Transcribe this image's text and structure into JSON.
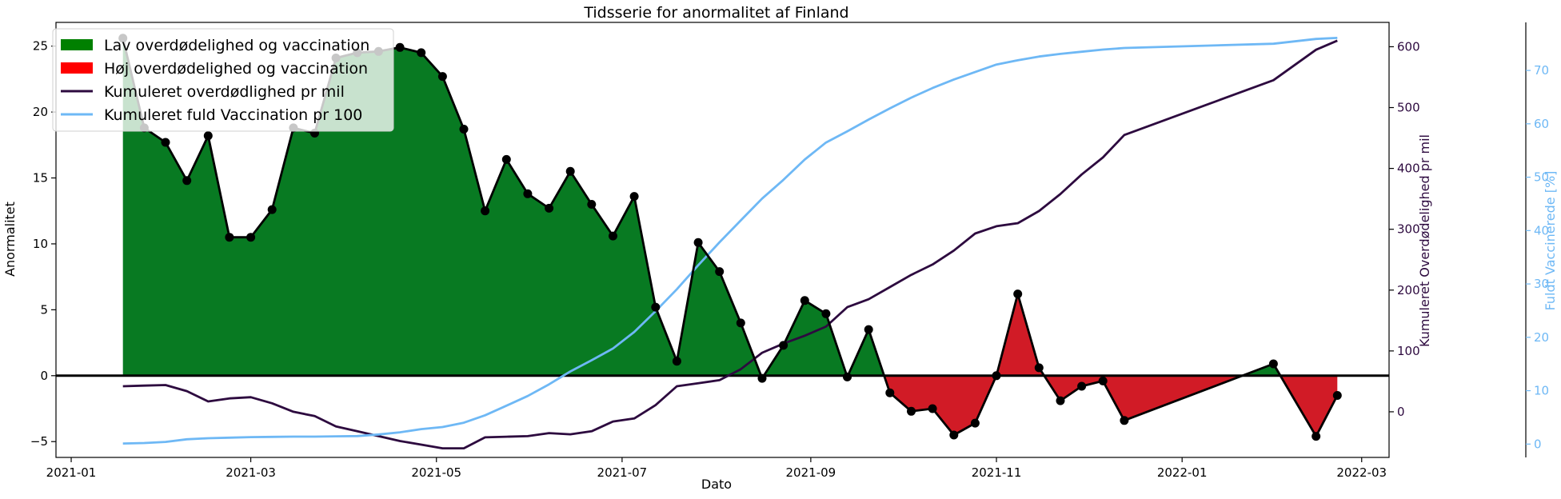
{
  "chart_data": {
    "type": "area",
    "title": "Tidsserie for anormalitet af Finland",
    "xlabel": "Dato",
    "ylabel": "Anormalitet",
    "ylabel_right": "Kumuleret Overdødelighed pr mil",
    "ylabel_right2": "Fuldt Vaccinerede [%]",
    "xlim": [
      "2020-12-27",
      "2022-03-10"
    ],
    "ylim": [
      -6.2,
      26.8
    ],
    "ylim_right": [
      -75,
      640
    ],
    "ylim_right2": [
      -2.5,
      79
    ],
    "x_ticks": [
      "2021-01",
      "2021-03",
      "2021-05",
      "2021-07",
      "2021-09",
      "2021-11",
      "2022-01",
      "2022-03"
    ],
    "y_ticks": [
      -5,
      0,
      5,
      10,
      15,
      20,
      25
    ],
    "y_ticks_right": [
      0,
      100,
      200,
      300,
      400,
      500,
      600
    ],
    "y_ticks_right2": [
      0,
      10,
      20,
      30,
      40,
      50,
      60,
      70
    ],
    "legend": {
      "placement": "top-left",
      "entries": [
        {
          "label": "Lav overdødelighed og vaccination",
          "color": "#008000",
          "kind": "patch"
        },
        {
          "label": "Høj overdødelighed og vaccination",
          "color": "#ff0000",
          "kind": "patch"
        },
        {
          "label": "Kumuleret overdødlighed pr mil",
          "color": "#2d0a3f",
          "kind": "line"
        },
        {
          "label": "Kumuleret fuld Vaccination pr 100",
          "color": "#6eb8f5",
          "kind": "line"
        }
      ]
    },
    "colors": {
      "positive_fill": "#087a22",
      "negative_fill": "#d11b26",
      "anomaly_line": "#000000",
      "excess_mortality_line": "#2d0a3f",
      "vaccination_line": "#6eb8f5"
    },
    "grid": false,
    "series": [
      {
        "name": "Anormalitet",
        "axis": "left",
        "points": [
          [
            "2021-01-18",
            25.6
          ],
          [
            "2021-01-25",
            18.8
          ],
          [
            "2021-02-01",
            17.7
          ],
          [
            "2021-02-08",
            14.8
          ],
          [
            "2021-02-15",
            18.2
          ],
          [
            "2021-02-22",
            10.5
          ],
          [
            "2021-03-01",
            10.5
          ],
          [
            "2021-03-08",
            12.6
          ],
          [
            "2021-03-15",
            18.8
          ],
          [
            "2021-03-22",
            18.4
          ],
          [
            "2021-03-29",
            24.1
          ],
          [
            "2021-04-05",
            24.5
          ],
          [
            "2021-04-12",
            24.6
          ],
          [
            "2021-04-19",
            24.9
          ],
          [
            "2021-04-26",
            24.5
          ],
          [
            "2021-05-03",
            22.7
          ],
          [
            "2021-05-10",
            18.7
          ],
          [
            "2021-05-17",
            12.5
          ],
          [
            "2021-05-24",
            16.4
          ],
          [
            "2021-05-31",
            13.8
          ],
          [
            "2021-06-07",
            12.7
          ],
          [
            "2021-06-14",
            15.5
          ],
          [
            "2021-06-21",
            13.0
          ],
          [
            "2021-06-28",
            10.6
          ],
          [
            "2021-07-05",
            13.6
          ],
          [
            "2021-07-12",
            5.2
          ],
          [
            "2021-07-19",
            1.1
          ],
          [
            "2021-07-26",
            10.1
          ],
          [
            "2021-08-02",
            7.9
          ],
          [
            "2021-08-09",
            4.0
          ],
          [
            "2021-08-16",
            -0.2
          ],
          [
            "2021-08-23",
            2.3
          ],
          [
            "2021-08-30",
            5.7
          ],
          [
            "2021-09-06",
            4.7
          ],
          [
            "2021-09-13",
            -0.1
          ],
          [
            "2021-09-20",
            3.5
          ],
          [
            "2021-09-27",
            -1.3
          ],
          [
            "2021-10-04",
            -2.7
          ],
          [
            "2021-10-11",
            -2.5
          ],
          [
            "2021-10-18",
            -4.5
          ],
          [
            "2021-10-25",
            -3.6
          ],
          [
            "2021-11-01",
            0.0
          ],
          [
            "2021-11-08",
            6.2
          ],
          [
            "2021-11-15",
            0.6
          ],
          [
            "2021-11-22",
            -1.9
          ],
          [
            "2021-11-29",
            -0.8
          ],
          [
            "2021-12-06",
            -0.4
          ],
          [
            "2021-12-13",
            -3.4
          ],
          [
            "2022-01-31",
            0.9
          ],
          [
            "2022-02-14",
            -4.6
          ],
          [
            "2022-02-21",
            -1.5
          ]
        ]
      },
      {
        "name": "Kumuleret overdødlighed pr mil",
        "axis": "right",
        "points": [
          [
            "2021-01-18",
            42
          ],
          [
            "2021-01-25",
            43
          ],
          [
            "2021-02-01",
            44
          ],
          [
            "2021-02-08",
            34
          ],
          [
            "2021-02-15",
            17
          ],
          [
            "2021-02-22",
            22
          ],
          [
            "2021-03-01",
            24
          ],
          [
            "2021-03-08",
            14
          ],
          [
            "2021-03-15",
            0
          ],
          [
            "2021-03-22",
            -7
          ],
          [
            "2021-03-29",
            -24
          ],
          [
            "2021-04-05",
            -32
          ],
          [
            "2021-04-12",
            -40
          ],
          [
            "2021-04-19",
            -48
          ],
          [
            "2021-04-26",
            -54
          ],
          [
            "2021-05-03",
            -60
          ],
          [
            "2021-05-10",
            -60
          ],
          [
            "2021-05-17",
            -42
          ],
          [
            "2021-05-24",
            -41
          ],
          [
            "2021-05-31",
            -40
          ],
          [
            "2021-06-07",
            -35
          ],
          [
            "2021-06-14",
            -37
          ],
          [
            "2021-06-21",
            -32
          ],
          [
            "2021-06-28",
            -16
          ],
          [
            "2021-07-05",
            -11
          ],
          [
            "2021-07-12",
            11
          ],
          [
            "2021-07-19",
            42
          ],
          [
            "2021-07-26",
            47
          ],
          [
            "2021-08-02",
            52
          ],
          [
            "2021-08-09",
            70
          ],
          [
            "2021-08-16",
            97
          ],
          [
            "2021-08-23",
            112
          ],
          [
            "2021-08-30",
            125
          ],
          [
            "2021-09-06",
            140
          ],
          [
            "2021-09-13",
            172
          ],
          [
            "2021-09-20",
            185
          ],
          [
            "2021-09-27",
            205
          ],
          [
            "2021-10-04",
            225
          ],
          [
            "2021-10-11",
            242
          ],
          [
            "2021-10-18",
            265
          ],
          [
            "2021-10-25",
            293
          ],
          [
            "2021-11-01",
            305
          ],
          [
            "2021-11-08",
            310
          ],
          [
            "2021-11-15",
            330
          ],
          [
            "2021-11-22",
            358
          ],
          [
            "2021-11-29",
            390
          ],
          [
            "2021-12-06",
            418
          ],
          [
            "2021-12-13",
            455
          ],
          [
            "2022-01-31",
            545
          ],
          [
            "2022-02-14",
            595
          ],
          [
            "2022-02-21",
            610
          ]
        ]
      },
      {
        "name": "Kumuleret fuld Vaccination pr 100",
        "axis": "right2",
        "points": [
          [
            "2021-01-18",
            0.1
          ],
          [
            "2021-01-25",
            0.2
          ],
          [
            "2021-02-01",
            0.4
          ],
          [
            "2021-02-08",
            0.9
          ],
          [
            "2021-02-15",
            1.1
          ],
          [
            "2021-02-22",
            1.2
          ],
          [
            "2021-03-01",
            1.3
          ],
          [
            "2021-03-08",
            1.35
          ],
          [
            "2021-03-15",
            1.4
          ],
          [
            "2021-03-22",
            1.4
          ],
          [
            "2021-03-29",
            1.45
          ],
          [
            "2021-04-05",
            1.5
          ],
          [
            "2021-04-12",
            1.8
          ],
          [
            "2021-04-19",
            2.2
          ],
          [
            "2021-04-26",
            2.8
          ],
          [
            "2021-05-03",
            3.2
          ],
          [
            "2021-05-10",
            4.0
          ],
          [
            "2021-05-17",
            5.4
          ],
          [
            "2021-05-24",
            7.2
          ],
          [
            "2021-05-31",
            9.0
          ],
          [
            "2021-06-07",
            11.2
          ],
          [
            "2021-06-14",
            13.6
          ],
          [
            "2021-06-21",
            15.7
          ],
          [
            "2021-06-28",
            17.9
          ],
          [
            "2021-07-05",
            21.0
          ],
          [
            "2021-07-12",
            24.9
          ],
          [
            "2021-07-19",
            29.0
          ],
          [
            "2021-07-26",
            33.5
          ],
          [
            "2021-08-02",
            37.8
          ],
          [
            "2021-08-09",
            41.9
          ],
          [
            "2021-08-16",
            46.0
          ],
          [
            "2021-08-23",
            49.5
          ],
          [
            "2021-08-30",
            53.3
          ],
          [
            "2021-09-06",
            56.5
          ],
          [
            "2021-09-13",
            58.6
          ],
          [
            "2021-09-20",
            60.8
          ],
          [
            "2021-09-27",
            62.9
          ],
          [
            "2021-10-04",
            64.9
          ],
          [
            "2021-10-11",
            66.7
          ],
          [
            "2021-10-18",
            68.3
          ],
          [
            "2021-10-25",
            69.7
          ],
          [
            "2021-11-01",
            71.1
          ],
          [
            "2021-11-08",
            71.9
          ],
          [
            "2021-11-15",
            72.6
          ],
          [
            "2021-11-22",
            73.1
          ],
          [
            "2021-11-29",
            73.5
          ],
          [
            "2021-12-06",
            73.9
          ],
          [
            "2021-12-13",
            74.2
          ],
          [
            "2022-01-31",
            75.0
          ],
          [
            "2022-02-14",
            75.9
          ],
          [
            "2022-02-21",
            76.1
          ]
        ]
      }
    ]
  }
}
